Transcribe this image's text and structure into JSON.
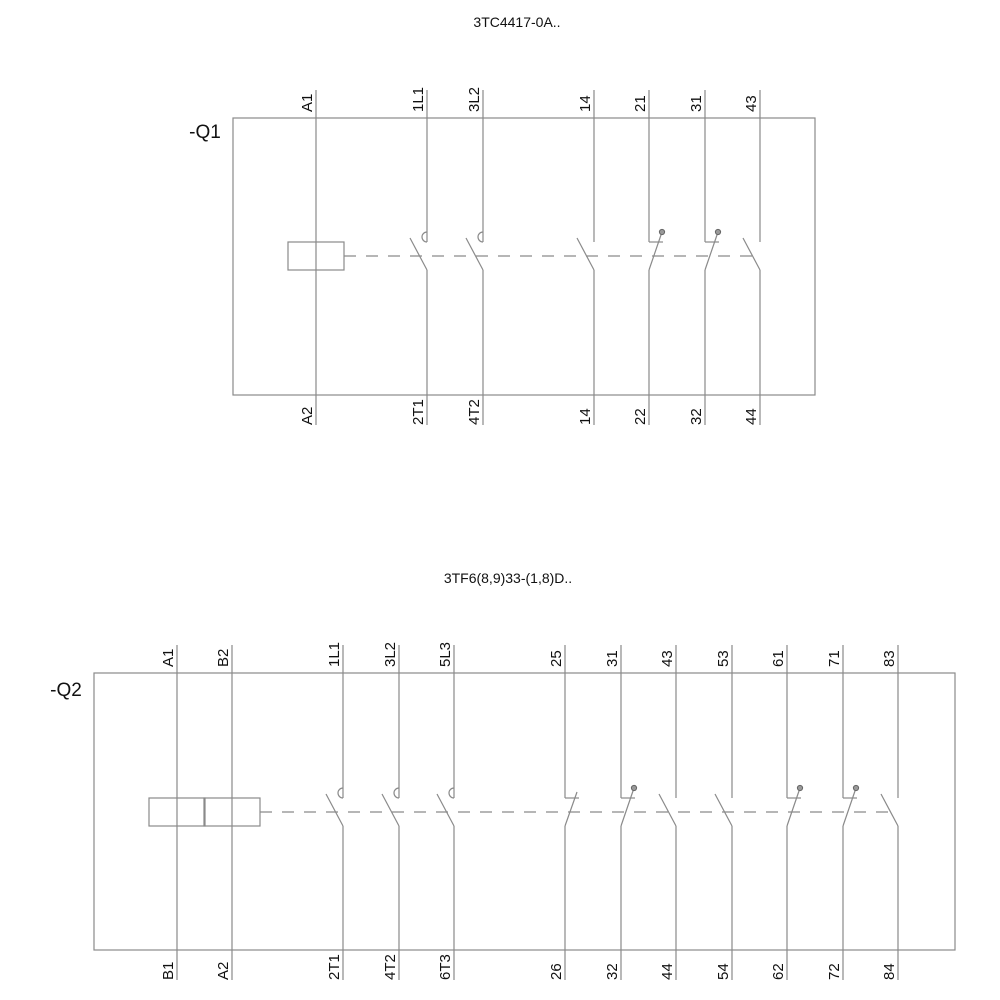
{
  "diagrams": [
    {
      "title": "3TC4417-0A..",
      "tag": "-Q1",
      "terminals": [
        {
          "top": "A1",
          "bottom": "A2",
          "type": "coil"
        },
        {
          "top": "1L1",
          "bottom": "2T1",
          "type": "main-no"
        },
        {
          "top": "3L2",
          "bottom": "4T2",
          "type": "main-no"
        },
        {
          "top": "14",
          "bottom": "14",
          "type": "no"
        },
        {
          "top": "21",
          "bottom": "22",
          "type": "nc-dot"
        },
        {
          "top": "31",
          "bottom": "32",
          "type": "nc-dot"
        },
        {
          "top": "43",
          "bottom": "44",
          "type": "no"
        }
      ]
    },
    {
      "title": "3TF6(8,9)33-(1,8)D..",
      "tag": "-Q2",
      "terminals": [
        {
          "top": "A1",
          "bottom": "B1",
          "type": "coil"
        },
        {
          "top": "B2",
          "bottom": "A2",
          "type": "coil"
        },
        {
          "top": "1L1",
          "bottom": "2T1",
          "type": "main-no"
        },
        {
          "top": "3L2",
          "bottom": "4T2",
          "type": "main-no"
        },
        {
          "top": "5L3",
          "bottom": "6T3",
          "type": "main-no"
        },
        {
          "top": "25",
          "bottom": "26",
          "type": "nc"
        },
        {
          "top": "31",
          "bottom": "32",
          "type": "nc-dot"
        },
        {
          "top": "43",
          "bottom": "44",
          "type": "no"
        },
        {
          "top": "53",
          "bottom": "54",
          "type": "no"
        },
        {
          "top": "61",
          "bottom": "62",
          "type": "nc-dot"
        },
        {
          "top": "71",
          "bottom": "72",
          "type": "nc-dot"
        },
        {
          "top": "83",
          "bottom": "84",
          "type": "no"
        }
      ]
    }
  ],
  "colors": {
    "line": "#8a8a8a",
    "text": "#111111"
  }
}
